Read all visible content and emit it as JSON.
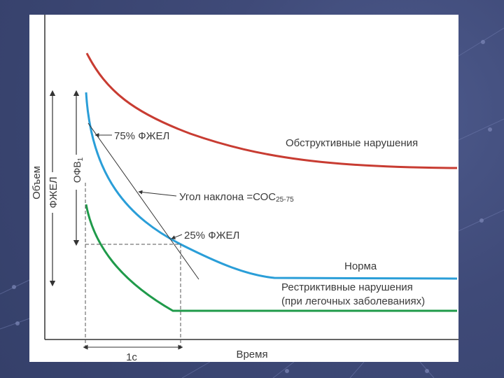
{
  "labels": {
    "obstructive": "Обструктивные нарушения",
    "norm": "Норма",
    "restrictive_line1": "Рестриктивные нарушения",
    "restrictive_line2": "(при легочных заболеваниях)",
    "fev75": "75% ФЖЕЛ",
    "fev25": "25% ФЖЕЛ",
    "slope_main": "Угол наклона =СОС",
    "slope_sub": "25-75",
    "volume_axis": "Объем",
    "fvc_arrow": "ФЖЕЛ",
    "fev1_arrow": "ОФВ",
    "fev1_sub": "1",
    "time_axis": "Время",
    "one_second": "1с"
  },
  "colors": {
    "obstructive": "#c83c32",
    "norm": "#2a9ed8",
    "restrictive": "#1f9a4a",
    "axis": "#333333"
  }
}
